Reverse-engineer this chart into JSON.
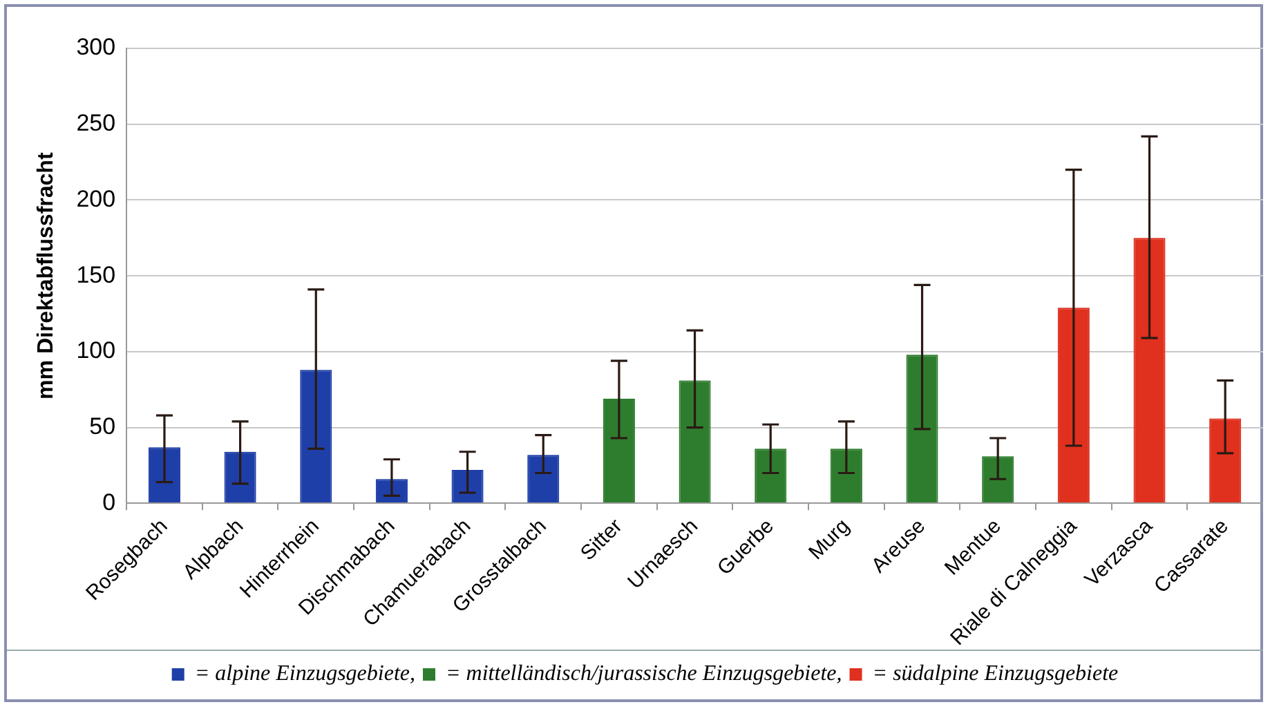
{
  "chart_data": {
    "type": "bar",
    "ylabel": "mm Direktabflussfracht",
    "categories": [
      "Rosegbach",
      "Alpbach",
      "Hinterrhein",
      "Dischmabach",
      "Chamuerabach",
      "Grosstalbach",
      "Sitter",
      "Urnaesch",
      "Guerbe",
      "Murg",
      "Areuse",
      "Mentue",
      "Riale di Calneggia",
      "Verzasca",
      "Cassarate"
    ],
    "series": [
      {
        "name": "= alpine Einzugsgebiete,",
        "color": "#1f3fa8",
        "values": [
          37,
          34,
          88,
          16,
          22,
          32,
          null,
          null,
          null,
          null,
          null,
          null,
          null,
          null,
          null
        ],
        "errors": [
          [
            14,
            58
          ],
          [
            13,
            54
          ],
          [
            36,
            141
          ],
          [
            5,
            29
          ],
          [
            7,
            34
          ],
          [
            20,
            45
          ],
          null,
          null,
          null,
          null,
          null,
          null,
          null,
          null,
          null
        ]
      },
      {
        "name": "= mittelländisch/jurassische Einzugsgebiete,",
        "color": "#2e7d2e",
        "values": [
          null,
          null,
          null,
          null,
          null,
          null,
          69,
          81,
          36,
          36,
          98,
          31,
          null,
          null,
          null
        ],
        "errors": [
          null,
          null,
          null,
          null,
          null,
          null,
          [
            43,
            94
          ],
          [
            50,
            114
          ],
          [
            20,
            52
          ],
          [
            20,
            54
          ],
          [
            49,
            144
          ],
          [
            16,
            43
          ],
          null,
          null,
          null
        ]
      },
      {
        "name": "= südalpine Einzugsgebiete",
        "color": "#e0301e",
        "values": [
          null,
          null,
          null,
          null,
          null,
          null,
          null,
          null,
          null,
          null,
          null,
          null,
          129,
          175,
          56
        ],
        "errors": [
          null,
          null,
          null,
          null,
          null,
          null,
          null,
          null,
          null,
          null,
          null,
          null,
          [
            38,
            220
          ],
          [
            109,
            242
          ],
          [
            33,
            81
          ]
        ]
      }
    ],
    "ylim": [
      0,
      300
    ],
    "yticks": [
      0,
      50,
      100,
      150,
      200,
      250,
      300
    ],
    "grid": "y",
    "legend": "bottom"
  }
}
